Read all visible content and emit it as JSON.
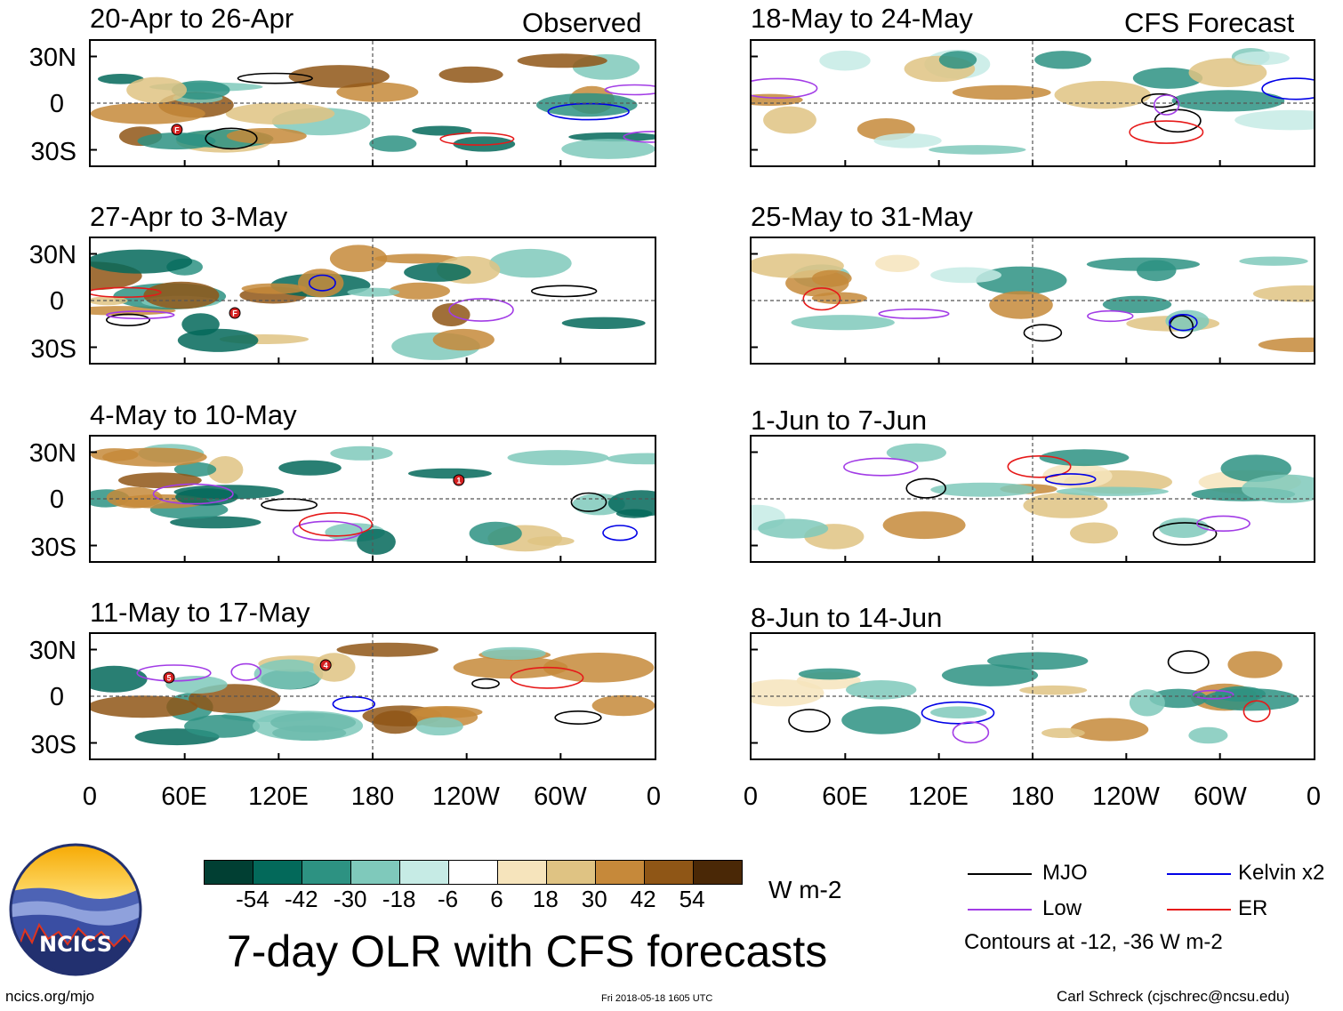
{
  "chart_data": {
    "type": "heatmap",
    "title": "7-day OLR with CFS forecasts",
    "units": "W m-2",
    "columns": [
      "Observed",
      "CFS Forecast"
    ],
    "latitude_ticks": [
      "30N",
      "0",
      "30S"
    ],
    "longitude_ticks": [
      "0",
      "60E",
      "120E",
      "180",
      "120W",
      "60W",
      "0"
    ],
    "panels": [
      {
        "id": "obs-1",
        "period": "20-Apr to 26-Apr",
        "column": "Observed",
        "storms": [
          {
            "label": "F",
            "lon": 55,
            "lat": -17
          }
        ]
      },
      {
        "id": "obs-2",
        "period": "27-Apr to 3-May",
        "column": "Observed",
        "storms": [
          {
            "label": "F",
            "lon": 92,
            "lat": -8
          }
        ]
      },
      {
        "id": "obs-3",
        "period": "4-May to 10-May",
        "column": "Observed",
        "storms": [
          {
            "label": "1",
            "lon": 235,
            "lat": 12
          }
        ]
      },
      {
        "id": "obs-4",
        "period": "11-May to 17-May",
        "column": "Observed",
        "storms": [
          {
            "label": "5",
            "lon": 50,
            "lat": 12
          },
          {
            "label": "4",
            "lon": 150,
            "lat": 20
          }
        ]
      },
      {
        "id": "fcst-1",
        "period": "18-May to 24-May",
        "column": "CFS Forecast",
        "storms": []
      },
      {
        "id": "fcst-2",
        "period": "25-May to 31-May",
        "column": "CFS Forecast",
        "storms": []
      },
      {
        "id": "fcst-3",
        "period": "1-Jun to 7-Jun",
        "column": "CFS Forecast",
        "storms": []
      },
      {
        "id": "fcst-4",
        "period": "8-Jun to 14-Jun",
        "column": "CFS Forecast",
        "storms": []
      }
    ],
    "colorbar": {
      "labels": [
        "-54",
        "-42",
        "-30",
        "-18",
        "-6",
        "6",
        "18",
        "30",
        "42",
        "54"
      ],
      "colors": [
        "#013f33",
        "#03695a",
        "#2d9282",
        "#7fc9bb",
        "#c6ebe5",
        "#ffffff",
        "#f6e4bc",
        "#dfc383",
        "#c6893a",
        "#8f5616",
        "#4a2806"
      ]
    },
    "contour_legend": [
      {
        "name": "MJO",
        "color": "#000000"
      },
      {
        "name": "Kelvin x2",
        "color": "#0000e6"
      },
      {
        "name": "Low",
        "color": "#a23ce6"
      },
      {
        "name": "ER",
        "color": "#e61919"
      }
    ],
    "contour_note": "Contours at -12, -36 W m-2"
  },
  "header": {
    "observed_label": "Observed",
    "forecast_label": "CFS Forecast"
  },
  "axes": {
    "lat_30n": "30N",
    "lat_0": "0",
    "lat_30s": "30S",
    "lon": [
      "0",
      "60E",
      "120E",
      "180",
      "120W",
      "60W",
      "0"
    ]
  },
  "colorbar": {
    "units": "W m-2",
    "labels": [
      "-54",
      "-42",
      "-30",
      "-18",
      "-6",
      "6",
      "18",
      "30",
      "42",
      "54"
    ]
  },
  "legend": {
    "mjo": "MJO",
    "kelvin": "Kelvin x2",
    "low": "Low",
    "er": "ER",
    "note": "Contours at -12, -36 W m-2"
  },
  "footer": {
    "title": "7-day OLR with CFS forecasts",
    "logo_text": "NCICS",
    "url": "ncics.org/mjo",
    "timestamp": "Fri 2018-05-18 1605 UTC",
    "credit": "Carl Schreck (cjschrec@ncsu.edu)"
  }
}
